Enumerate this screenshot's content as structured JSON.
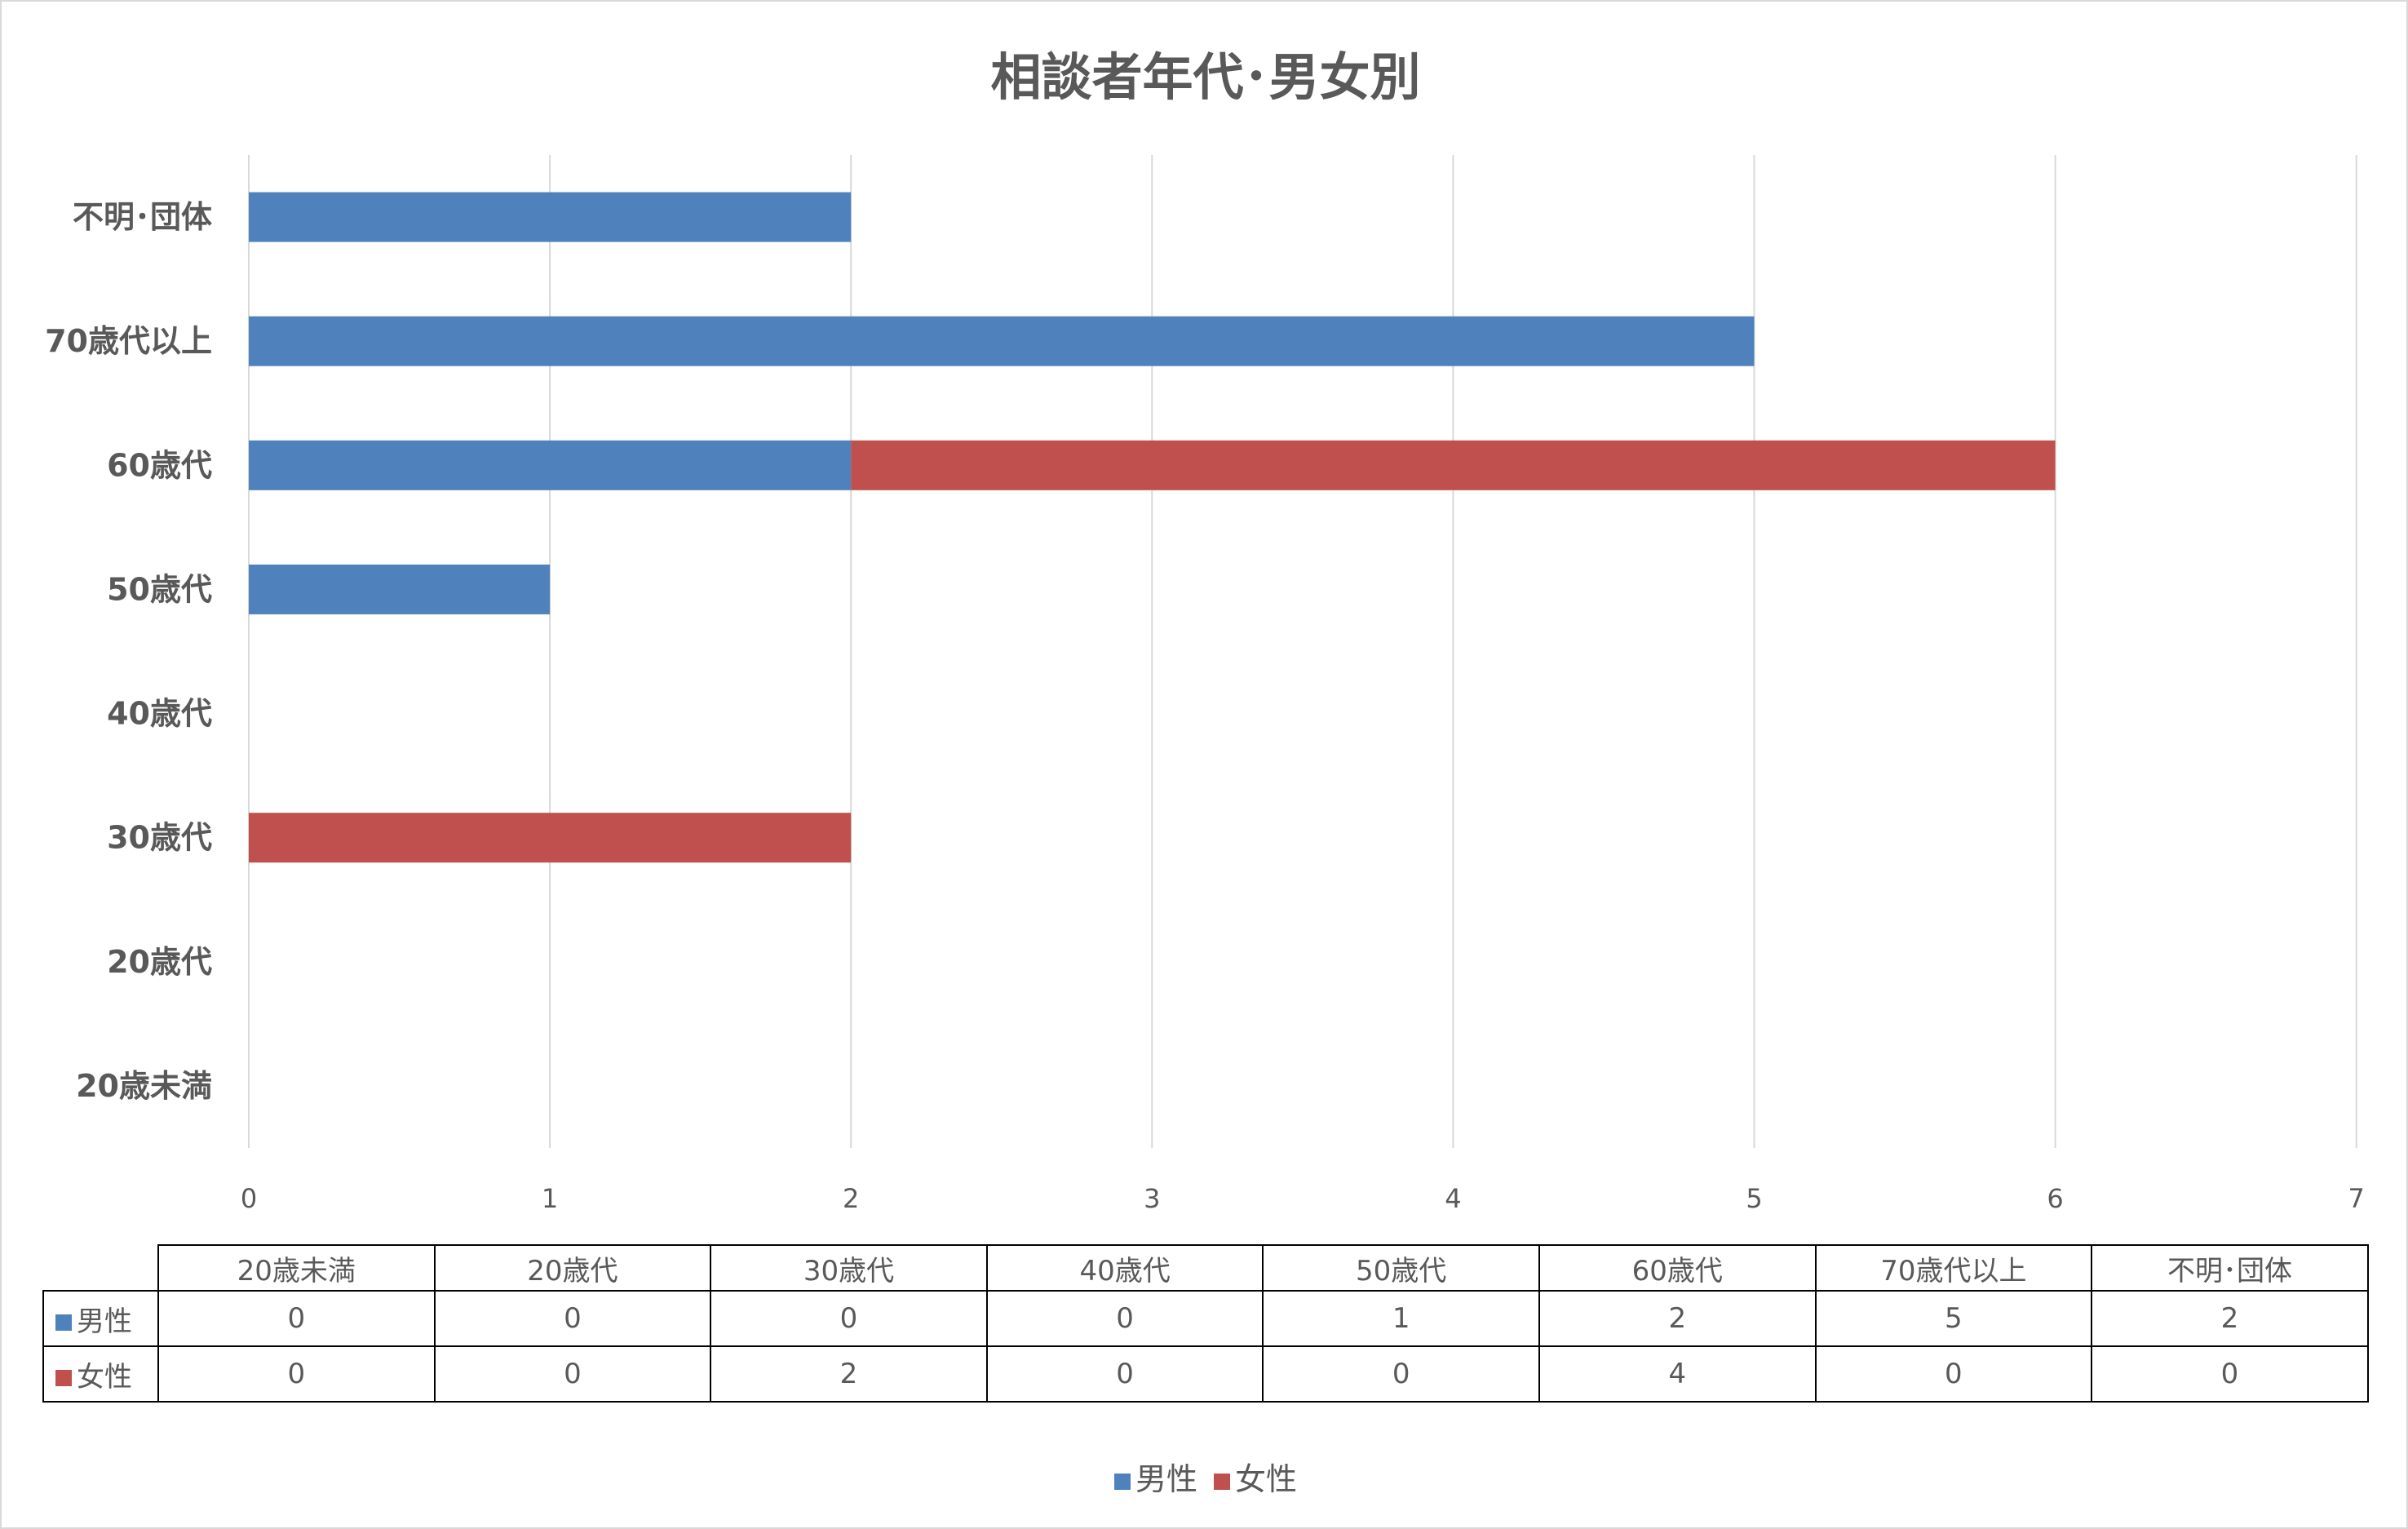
{
  "chart_data": {
    "type": "bar",
    "orientation": "horizontal",
    "stacked": true,
    "title": "相談者年代･男女別",
    "categories": [
      "20歳未満",
      "20歳代",
      "30歳代",
      "40歳代",
      "50歳代",
      "60歳代",
      "70歳代以上",
      "不明･団体"
    ],
    "series": [
      {
        "name": "男性",
        "color": "#4f81bd",
        "values": [
          0,
          0,
          0,
          0,
          1,
          2,
          5,
          2
        ]
      },
      {
        "name": "女性",
        "color": "#c0504d",
        "values": [
          0,
          0,
          2,
          0,
          0,
          4,
          0,
          0
        ]
      }
    ],
    "xlim": [
      0,
      7
    ],
    "xticks": [
      "0",
      "1",
      "2",
      "3",
      "4",
      "5",
      "6",
      "7"
    ],
    "grid": true,
    "legend": "bottom",
    "data_table": true
  }
}
